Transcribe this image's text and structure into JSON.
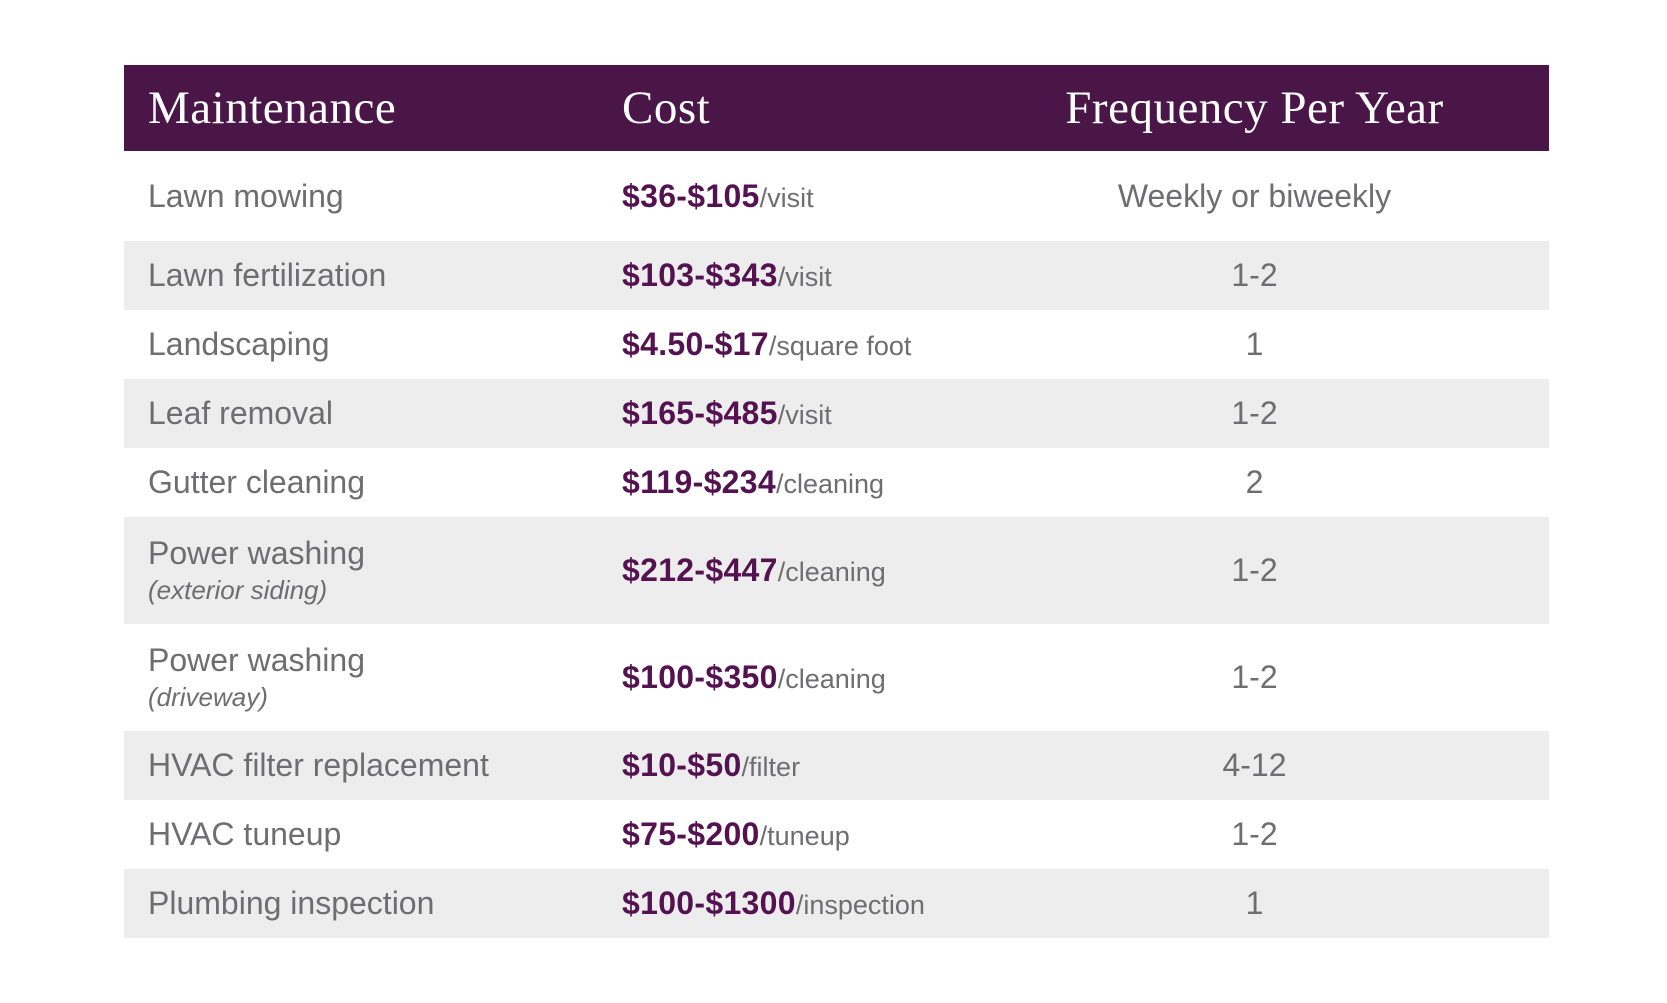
{
  "colors": {
    "header_bg": "#4a1547",
    "header_text": "#fdfdfd",
    "cost_text": "#541350",
    "body_text": "#6e6e70",
    "stripe_bg": "#ededee"
  },
  "chart_data": {
    "type": "table",
    "title": "Home maintenance cost table",
    "columns": [
      "Maintenance",
      "Cost",
      "Frequency Per Year"
    ],
    "rows": [
      {
        "name": "Lawn mowing",
        "sub": "",
        "cost": "$36-$105",
        "unit": "/visit",
        "frequency": "Weekly or biweekly"
      },
      {
        "name": "Lawn fertilization",
        "sub": "",
        "cost": "$103-$343",
        "unit": "/visit",
        "frequency": "1-2"
      },
      {
        "name": "Landscaping",
        "sub": "",
        "cost": "$4.50-$17",
        "unit": "/square foot",
        "frequency": "1"
      },
      {
        "name": "Leaf removal",
        "sub": "",
        "cost": "$165-$485",
        "unit": "/visit",
        "frequency": "1-2"
      },
      {
        "name": "Gutter cleaning",
        "sub": "",
        "cost": "$119-$234",
        "unit": "/cleaning",
        "frequency": "2"
      },
      {
        "name": "Power washing",
        "sub": "(exterior siding)",
        "cost": "$212-$447",
        "unit": "/cleaning",
        "frequency": "1-2"
      },
      {
        "name": "Power washing",
        "sub": "(driveway)",
        "cost": "$100-$350",
        "unit": "/cleaning",
        "frequency": "1-2"
      },
      {
        "name": "HVAC filter replacement",
        "sub": "",
        "cost": "$10-$50",
        "unit": "/filter",
        "frequency": "4-12"
      },
      {
        "name": "HVAC tuneup",
        "sub": "",
        "cost": "$75-$200",
        "unit": "/tuneup",
        "frequency": "1-2"
      },
      {
        "name": "Plumbing inspection",
        "sub": "",
        "cost": "$100-$1300",
        "unit": "/inspection",
        "frequency": "1"
      }
    ]
  }
}
